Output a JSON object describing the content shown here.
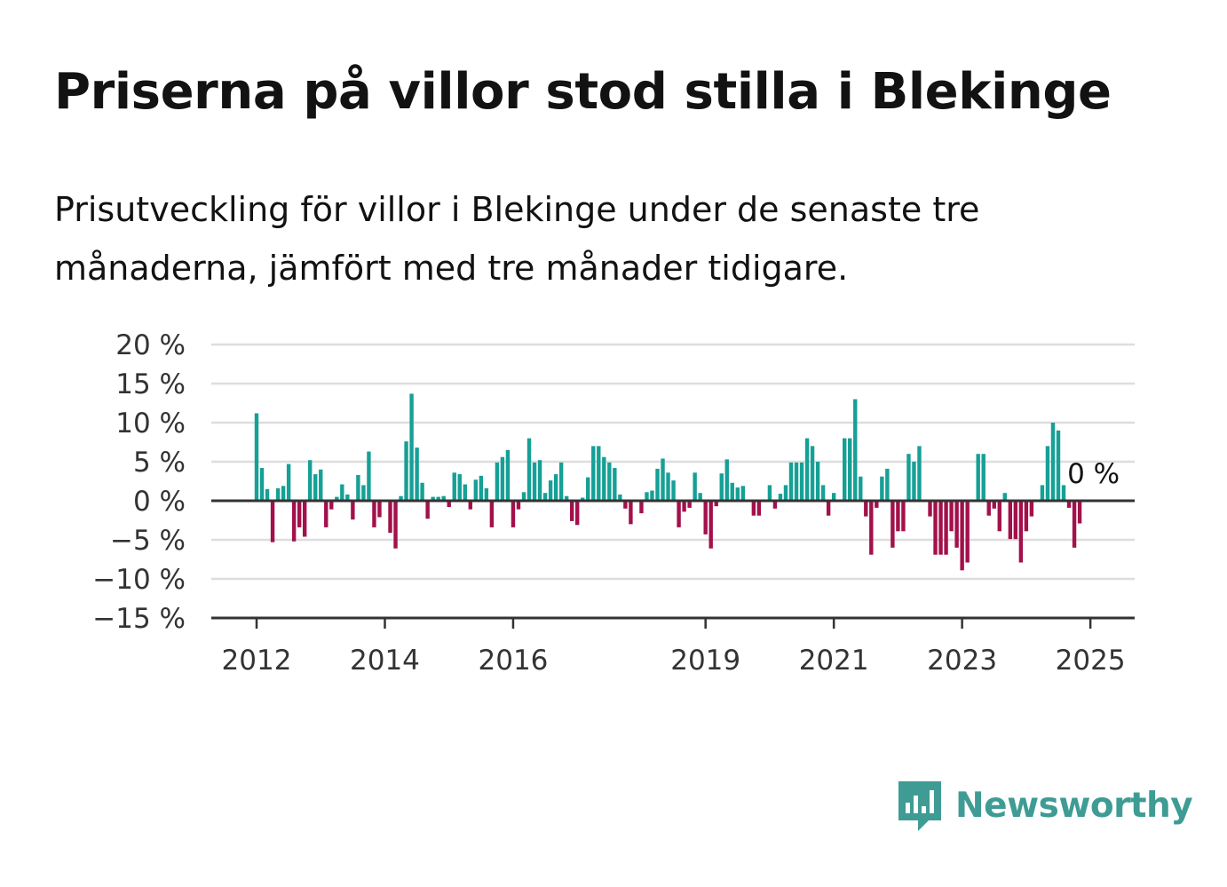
{
  "title": "Priserna på villor stod stilla i Blekinge",
  "subtitle": "Prisutveckling för villor i Blekinge under de senaste tre månaderna, jämfört med tre månader tidigare.",
  "brand": {
    "name": "Newsworthy",
    "color": "#3e9c94",
    "icon": "newsworthy-logo-icon"
  },
  "colors": {
    "positive": "#16a096",
    "negative": "#a2114b",
    "grid": "#dddddd",
    "axis": "#333333"
  },
  "chart_data": {
    "type": "bar",
    "title": "",
    "xlabel": "",
    "ylabel": "",
    "unit": "%",
    "ylim": [
      -15,
      20
    ],
    "y_ticks": [
      "20 %",
      "15 %",
      "10 %",
      "5 %",
      "0 %",
      "−5 %",
      "−10 %",
      "−15 %"
    ],
    "y_tick_values": [
      20,
      15,
      10,
      5,
      0,
      -5,
      -10,
      -15
    ],
    "x_ticks": [
      "2012",
      "2014",
      "2016",
      "2019",
      "2021",
      "2023",
      "2025"
    ],
    "start": "2012-01",
    "end_label": "0 %",
    "grid": true,
    "values": [
      11.2,
      4.2,
      1.5,
      -5.3,
      1.6,
      1.9,
      4.7,
      -5.2,
      -3.4,
      -4.6,
      5.2,
      3.4,
      4.0,
      -3.4,
      -1.1,
      0.5,
      2.1,
      0.8,
      -2.4,
      3.3,
      2.0,
      6.3,
      -3.4,
      -2.1,
      0.0,
      -4.1,
      -6.1,
      0.6,
      7.6,
      13.7,
      6.8,
      2.3,
      -2.3,
      0.5,
      0.5,
      0.6,
      -0.8,
      3.6,
      3.4,
      2.1,
      -1.1,
      2.7,
      3.2,
      1.6,
      -3.4,
      4.9,
      5.6,
      6.5,
      -3.4,
      -1.1,
      1.1,
      8.0,
      4.9,
      5.2,
      1.0,
      2.6,
      3.4,
      4.9,
      0.6,
      -2.6,
      -3.1,
      0.4,
      3.0,
      7.0,
      7.0,
      5.6,
      4.9,
      4.2,
      0.8,
      -1.0,
      -3.0,
      0.0,
      -1.6,
      1.1,
      1.3,
      4.1,
      5.4,
      3.6,
      2.6,
      -3.4,
      -1.4,
      -0.9,
      3.6,
      1.0,
      -4.3,
      -6.1,
      -0.7,
      3.5,
      5.3,
      2.3,
      1.7,
      1.9,
      0.0,
      -1.9,
      -1.9,
      0.0,
      2.0,
      -1.0,
      0.9,
      2.0,
      4.9,
      4.9,
      4.9,
      8.0,
      7.0,
      5.0,
      2.0,
      -1.9,
      1.0,
      0.0,
      8.0,
      8.0,
      13.0,
      3.1,
      -2.0,
      -6.9,
      -0.9,
      3.1,
      4.1,
      -6.0,
      -3.9,
      -3.9,
      6.0,
      5.0,
      7.0,
      0.0,
      -2.0,
      -6.9,
      -6.9,
      -6.9,
      -3.9,
      -6.0,
      -8.9,
      -7.9,
      0.0,
      6.0,
      6.0,
      -1.9,
      -1.0,
      -3.9,
      1.0,
      -4.9,
      -4.9,
      -7.9,
      -3.9,
      -2.0,
      0.0,
      2.0,
      7.0,
      10.0,
      9.0,
      2.0,
      -0.9,
      -6.0,
      -2.9,
      0.0
    ]
  }
}
